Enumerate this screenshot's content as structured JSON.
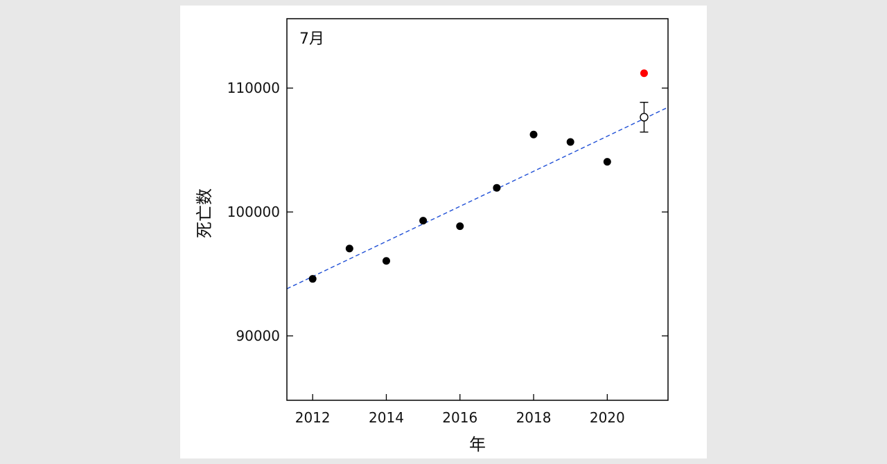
{
  "chart_data": {
    "type": "scatter",
    "title": "",
    "annotation": "7月",
    "xlabel": "年",
    "ylabel": "死亡数",
    "xlim": [
      2011.3,
      2021.65
    ],
    "ylim": [
      84800,
      115600
    ],
    "xticks": [
      2012,
      2014,
      2016,
      2018,
      2020
    ],
    "yticks": [
      90000,
      100000,
      110000
    ],
    "grid": false,
    "observed": {
      "x": [
        2012,
        2013,
        2014,
        2015,
        2016,
        2017,
        2018,
        2019,
        2020
      ],
      "y": [
        94600,
        97050,
        96050,
        99300,
        98850,
        101950,
        106250,
        105650,
        104050
      ],
      "color": "#000000"
    },
    "highlight": {
      "x": 2021,
      "y": 111200,
      "color": "#ff0000"
    },
    "expected": {
      "x": 2021,
      "y": 107650,
      "err_low": 106450,
      "err_high": 108850,
      "marker": "open-circle"
    },
    "trend_line": {
      "x": [
        2011.3,
        2021.65
      ],
      "y": [
        93800,
        108450
      ],
      "color": "#1f4fd6",
      "style": "dashed"
    }
  }
}
